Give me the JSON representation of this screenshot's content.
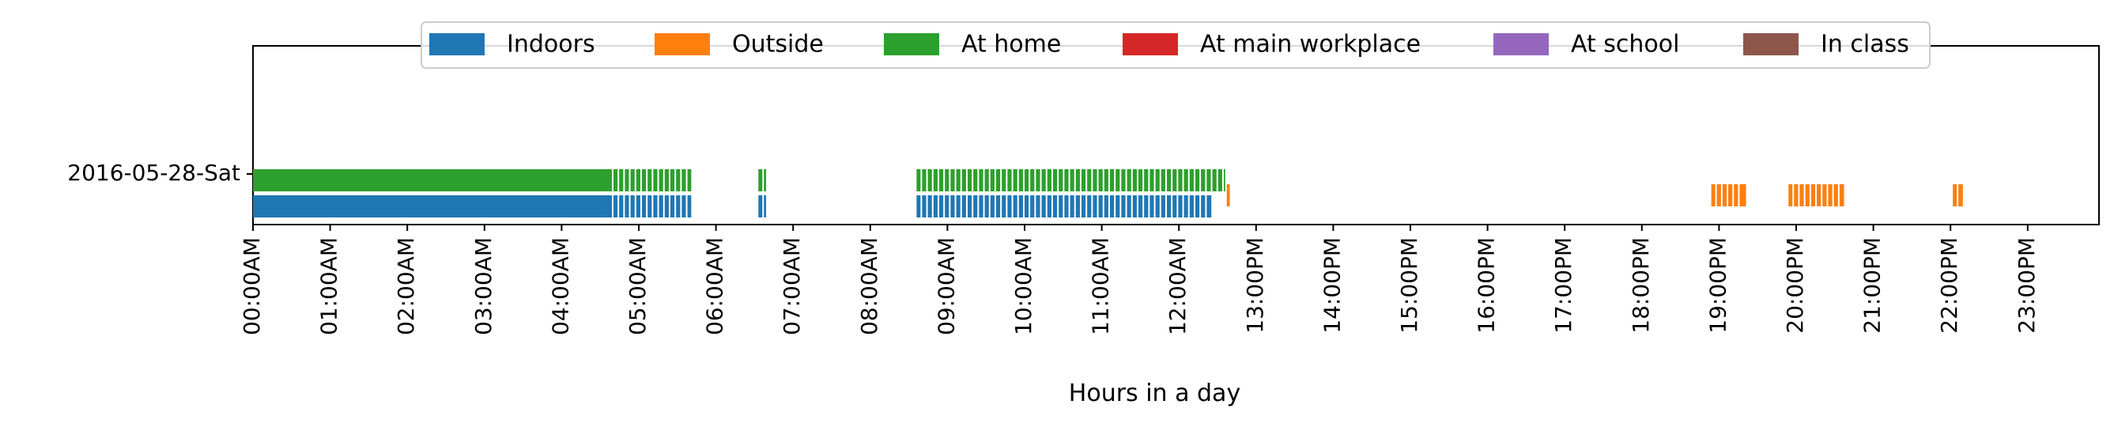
{
  "chart_data": {
    "type": "timeline",
    "xlabel": "Hours in a day",
    "xlim": [
      0,
      24
    ],
    "x_ticks": [
      "00:00AM",
      "01:00AM",
      "02:00AM",
      "03:00AM",
      "04:00AM",
      "05:00AM",
      "06:00AM",
      "07:00AM",
      "08:00AM",
      "09:00AM",
      "10:00AM",
      "11:00AM",
      "12:00AM",
      "13:00PM",
      "14:00PM",
      "15:00PM",
      "16:00PM",
      "17:00PM",
      "18:00PM",
      "19:00PM",
      "20:00PM",
      "21:00PM",
      "22:00PM",
      "23:00PM"
    ],
    "y_categories": [
      "2016-05-28-Sat"
    ],
    "legend_position": "top-center",
    "legend": [
      {
        "name": "Indoors",
        "color": "#1f77b4"
      },
      {
        "name": "Outside",
        "color": "#ff7f0e"
      },
      {
        "name": "At home",
        "color": "#2ca02c"
      },
      {
        "name": "At main workplace",
        "color": "#d62728"
      },
      {
        "name": "At school",
        "color": "#9467bd"
      },
      {
        "name": "In class",
        "color": "#8c564b"
      }
    ],
    "series": [
      {
        "name": "Indoors",
        "color": "#1f77b4",
        "intervals": [
          [
            0.0,
            4.6
          ],
          [
            4.6,
            5.68
          ],
          [
            6.55,
            6.65
          ],
          [
            8.6,
            12.42
          ]
        ]
      },
      {
        "name": "Outside",
        "color": "#ff7f0e",
        "intervals": [
          [
            12.62,
            12.66
          ],
          [
            18.9,
            19.35
          ],
          [
            19.9,
            20.62
          ],
          [
            22.03,
            22.16
          ]
        ]
      },
      {
        "name": "At home",
        "color": "#2ca02c",
        "intervals": [
          [
            0.0,
            4.6
          ],
          [
            4.6,
            5.68
          ],
          [
            6.55,
            6.65
          ],
          [
            8.6,
            12.6
          ]
        ]
      },
      {
        "name": "At main workplace",
        "color": "#d62728",
        "intervals": []
      },
      {
        "name": "At school",
        "color": "#9467bd",
        "intervals": []
      },
      {
        "name": "In class",
        "color": "#8c564b",
        "intervals": []
      }
    ]
  }
}
